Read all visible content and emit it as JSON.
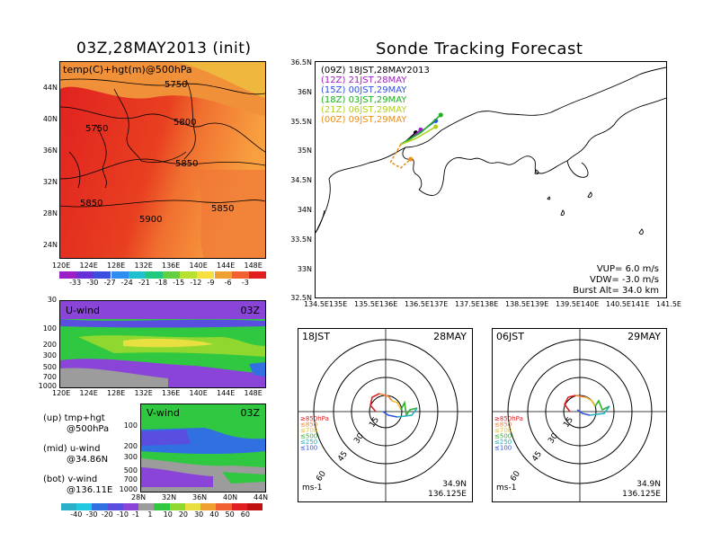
{
  "left_title": "03Z,28MAY2013 (init)",
  "right_title": "Sonde Tracking Forecast",
  "map_panel": {
    "label": "temp(C)+hgt(m)@500hPa",
    "contours": [
      "5750",
      "5750",
      "5800",
      "5850",
      "5850",
      "5850",
      "5900"
    ],
    "lat_ticks": [
      "44N",
      "40N",
      "36N",
      "32N",
      "28N",
      "24N"
    ],
    "lon_ticks": [
      "120E",
      "124E",
      "128E",
      "132E",
      "136E",
      "140E",
      "144E",
      "148E"
    ],
    "colorbar": [
      "-33",
      "-30",
      "-27",
      "-24",
      "-21",
      "-18",
      "-15",
      "-12",
      "-9",
      "-6",
      "-3"
    ],
    "colorbar_colors": [
      "#9b20c8",
      "#6a30d8",
      "#3a4ee0",
      "#2e8ef0",
      "#20c0d0",
      "#20c880",
      "#60d040",
      "#b8e030",
      "#f8e040",
      "#f0a030",
      "#f06030",
      "#e02020"
    ]
  },
  "uwind_panel": {
    "label": "U-wind",
    "time": "03Z",
    "y_ticks": [
      "30",
      "100",
      "200",
      "300",
      "500",
      "700",
      "1000"
    ],
    "x_ticks": [
      "120E",
      "124E",
      "128E",
      "132E",
      "136E",
      "140E",
      "144E",
      "148E"
    ]
  },
  "vwind_panel": {
    "label": "V-wind",
    "time": "03Z",
    "y_ticks": [
      "100",
      "200",
      "300",
      "500",
      "700",
      "1000"
    ],
    "x_ticks": [
      "28N",
      "32N",
      "36N",
      "40N",
      "44N"
    ],
    "colorbar": [
      "-40",
      "-30",
      "-20",
      "-10",
      "-1",
      "1",
      "10",
      "20",
      "30",
      "40",
      "50",
      "60"
    ],
    "colorbar_colors": [
      "#2ab0c8",
      "#20c8e0",
      "#3070e0",
      "#5a4ee0",
      "#8a44d8",
      "#9c9c9c",
      "#30c840",
      "#90d830",
      "#e8e040",
      "#f0a030",
      "#f06030",
      "#e02020",
      "#c01010"
    ]
  },
  "notes": {
    "up_1": "(up) tmp+hgt",
    "up_2": "@500hPa",
    "mid_1": "(mid) u-wind",
    "mid_2": "@34.86N",
    "bot_1": "(bot) v-wind",
    "bot_2": "@136.11E"
  },
  "track_map": {
    "lat_ticks": [
      "36.5N",
      "36N",
      "35.5N",
      "35N",
      "34.5N",
      "34N",
      "33.5N",
      "33N",
      "32.5N"
    ],
    "lon_ticks": [
      "134.5E",
      "135E",
      "135.5E",
      "136E",
      "136.5E",
      "137E",
      "137.5E",
      "138E",
      "138.5E",
      "139E",
      "139.5E",
      "140E",
      "140.5E",
      "141E",
      "141.5E"
    ],
    "legend": [
      {
        "t": "(09Z)",
        "l": "18JST,28MAY2013",
        "color": "#000000"
      },
      {
        "t": "(12Z)",
        "l": "21JST,28MAY",
        "color": "#a020c0"
      },
      {
        "t": "(15Z)",
        "l": "00JST,29MAY",
        "color": "#3050e0"
      },
      {
        "t": "(18Z)",
        "l": "03JST,29MAY",
        "color": "#20b020"
      },
      {
        "t": "(21Z)",
        "l": "06JST,29MAY",
        "color": "#b0d020"
      },
      {
        "t": "(00Z)",
        "l": "09JST,29MAY",
        "color": "#e89020"
      }
    ],
    "vup": "VUP= 6.0 m/s",
    "vdw": "VDW= -3.0 m/s",
    "burst": "Burst Alt= 34.0 km"
  },
  "hodo_left": {
    "time": "18JST",
    "date": "28MAY",
    "lat": "34.9N",
    "lon": "136.125E",
    "unit": "ms-1"
  },
  "hodo_right": {
    "time": "06JST",
    "date": "29MAY",
    "lat": "34.9N",
    "lon": "136.125E",
    "unit": "ms-1"
  },
  "hodo_rings": [
    "15",
    "30",
    "45",
    "60"
  ],
  "hodo_legend": [
    {
      "l": "≥850hPa",
      "color": "#e02020"
    },
    {
      "l": "≤850",
      "color": "#f08030"
    },
    {
      "l": "≤700",
      "color": "#f0c030"
    },
    {
      "l": "≤500",
      "color": "#30b030"
    },
    {
      "l": "≤250",
      "color": "#20b0c0"
    },
    {
      "l": "≤100",
      "color": "#3050e0"
    }
  ],
  "chart_data": [
    {
      "type": "heatmap",
      "title": "03Z,28MAY2013 (init)",
      "subtitle": "temp(C)+hgt(m)@500hPa",
      "xlabel": "",
      "ylabel": "",
      "xlim": [
        "120E",
        "150E"
      ],
      "ylim": [
        "22N",
        "46N"
      ],
      "contour_labels": [
        5750,
        5750,
        5800,
        5850,
        5850,
        5850,
        5900
      ]
    },
    {
      "type": "heatmap",
      "title": "U-wind",
      "xlim": [
        "120E",
        "150E"
      ],
      "ylim": [
        1000,
        30
      ]
    },
    {
      "type": "heatmap",
      "title": "V-wind",
      "xlim": [
        "28N",
        "44N"
      ],
      "ylim": [
        1000,
        30
      ]
    },
    {
      "type": "line",
      "title": "Sonde Tracking Forecast",
      "xlim": [
        134.5,
        141.5
      ],
      "ylim": [
        32.5,
        36.5
      ],
      "series": [
        {
          "name": "(09Z) 18JST,28MAY2013",
          "values": [
            [
              136.2,
              35.1
            ],
            [
              136.3,
              35.15
            ],
            [
              136.5,
              35.3
            ]
          ]
        },
        {
          "name": "(12Z) 21JST,28MAY",
          "values": [
            [
              136.2,
              35.1
            ],
            [
              136.4,
              35.2
            ],
            [
              136.6,
              35.35
            ]
          ]
        },
        {
          "name": "(15Z) 00JST,29MAY",
          "values": [
            [
              136.2,
              35.1
            ],
            [
              136.5,
              35.25
            ],
            [
              136.9,
              35.5
            ]
          ]
        },
        {
          "name": "(18Z) 03JST,29MAY",
          "values": [
            [
              136.2,
              35.1
            ],
            [
              136.6,
              35.3
            ],
            [
              137.0,
              35.6
            ]
          ]
        },
        {
          "name": "(21Z) 06JST,29MAY",
          "values": [
            [
              136.2,
              35.1
            ],
            [
              136.5,
              35.2
            ],
            [
              136.9,
              35.4
            ]
          ]
        },
        {
          "name": "(00Z) 09JST,29MAY",
          "values": [
            [
              136.2,
              35.1
            ],
            [
              136.0,
              34.8
            ],
            [
              136.2,
              34.7
            ],
            [
              136.4,
              34.85
            ]
          ]
        }
      ]
    }
  ]
}
